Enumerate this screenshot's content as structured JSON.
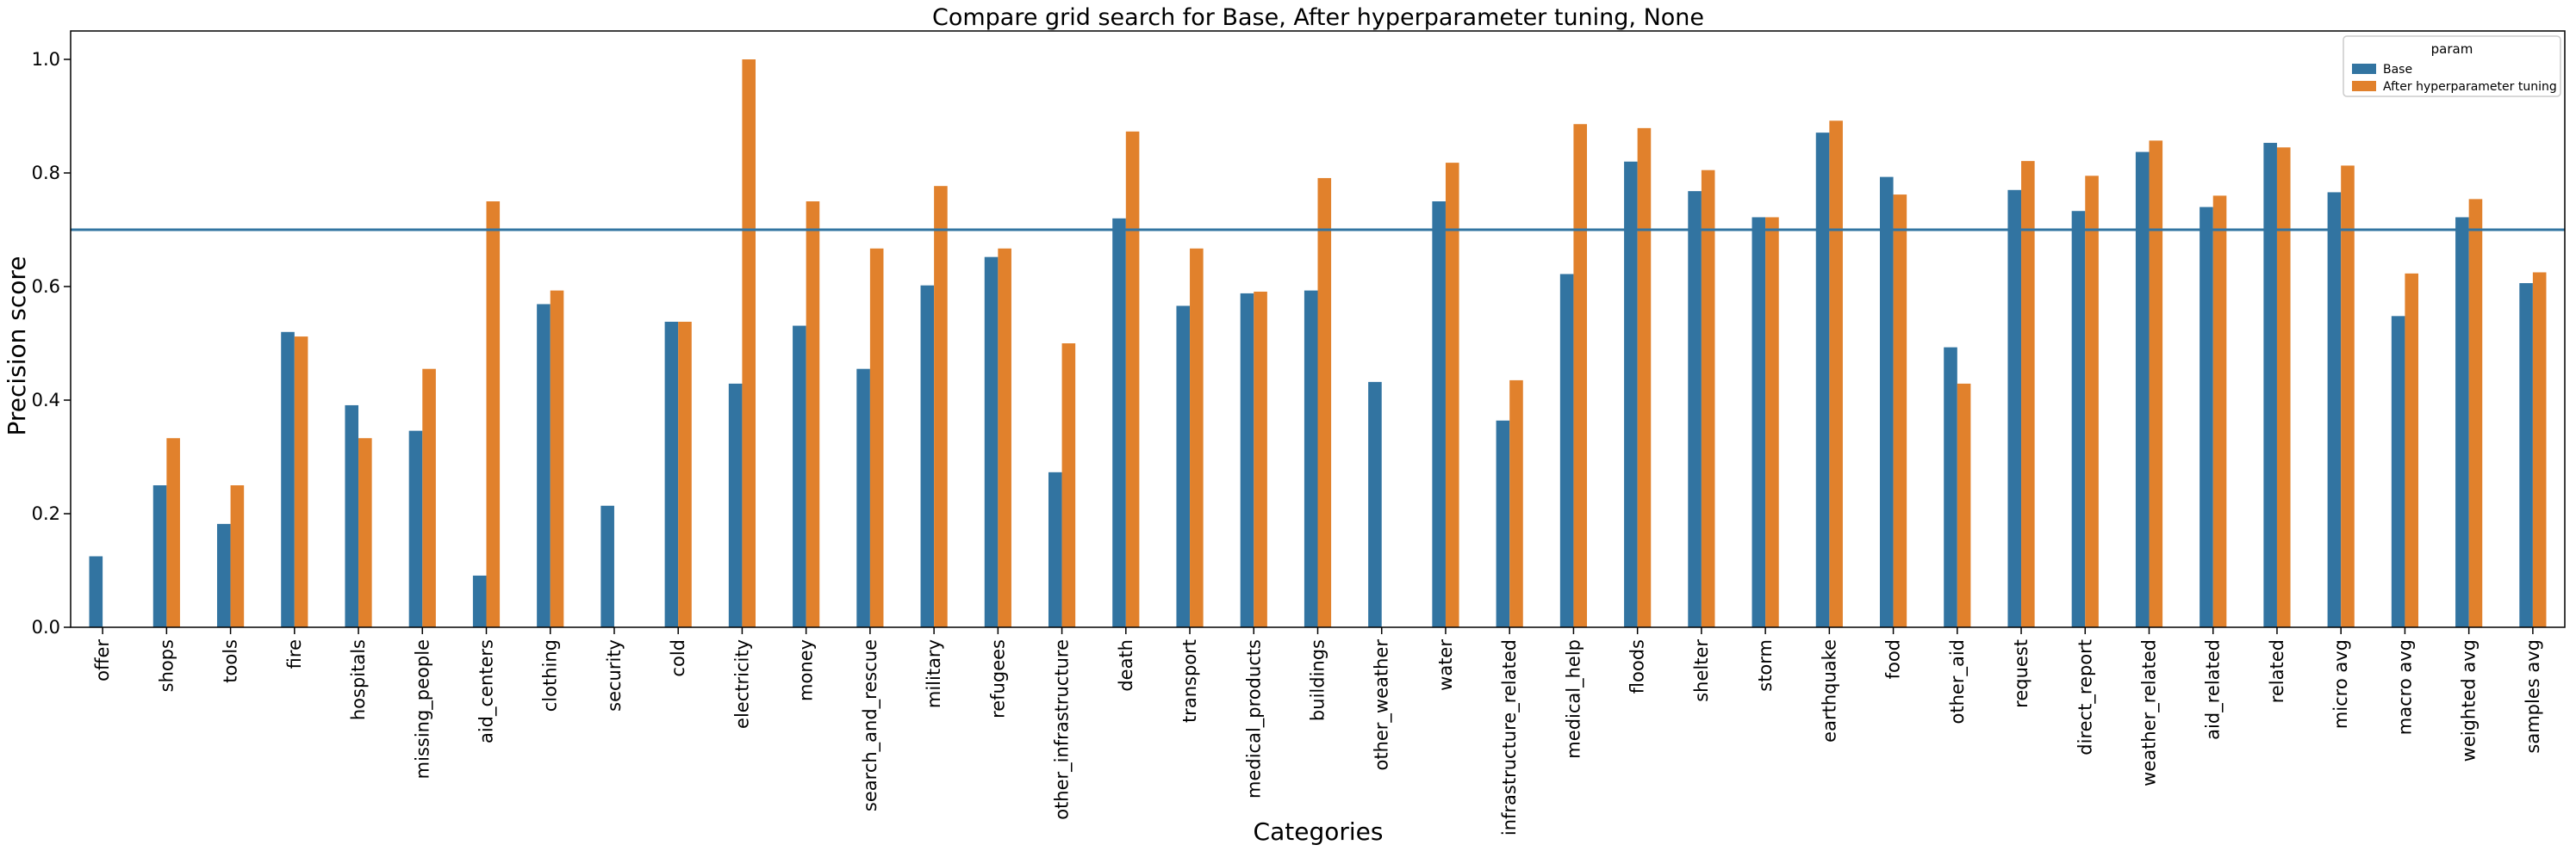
{
  "chart_data": {
    "type": "bar",
    "title": "Compare grid search for Base, After hyperparameter tuning, None",
    "xlabel": "Categories",
    "ylabel": "Precision score",
    "ylim": [
      0,
      1.05
    ],
    "yticks": [
      "0.0",
      "0.2",
      "0.4",
      "0.6",
      "0.8",
      "1.0"
    ],
    "grid": false,
    "legend": {
      "title": "param",
      "placement": "top-right"
    },
    "reference_line": 0.7,
    "categories": [
      "offer",
      "shops",
      "tools",
      "fire",
      "hospitals",
      "missing_people",
      "aid_centers",
      "clothing",
      "security",
      "cold",
      "electricity",
      "money",
      "search_and_rescue",
      "military",
      "refugees",
      "other_infrastructure",
      "death",
      "transport",
      "medical_products",
      "buildings",
      "other_weather",
      "water",
      "infrastructure_related",
      "medical_help",
      "floods",
      "shelter",
      "storm",
      "earthquake",
      "food",
      "other_aid",
      "request",
      "direct_report",
      "weather_related",
      "aid_related",
      "related",
      "micro avg",
      "macro avg",
      "weighted avg",
      "samples avg"
    ],
    "series": [
      {
        "name": "Base",
        "color": "#3274a1",
        "values": [
          0.125,
          0.25,
          0.182,
          0.52,
          0.391,
          0.346,
          0.091,
          0.569,
          0.214,
          0.538,
          0.429,
          0.531,
          0.455,
          0.602,
          0.652,
          0.273,
          0.72,
          0.566,
          0.588,
          0.593,
          0.432,
          0.75,
          0.364,
          0.622,
          0.82,
          0.768,
          0.722,
          0.871,
          0.793,
          0.493,
          0.77,
          0.733,
          0.837,
          0.74,
          0.853,
          0.766,
          0.548,
          0.722,
          0.606
        ]
      },
      {
        "name": "After hyperparameter tuning",
        "color": "#e1812c",
        "values": [
          0,
          0.333,
          0.25,
          0.512,
          0.333,
          0.455,
          0.75,
          0.593,
          0,
          0.538,
          1.0,
          0.75,
          0.667,
          0.777,
          0.667,
          0.5,
          0.873,
          0.667,
          0.591,
          0.791,
          0,
          0.818,
          0.435,
          0.886,
          0.879,
          0.805,
          0.722,
          0.892,
          0.762,
          0.429,
          0.821,
          0.795,
          0.857,
          0.76,
          0.845,
          0.813,
          0.623,
          0.754,
          0.625
        ]
      }
    ]
  }
}
